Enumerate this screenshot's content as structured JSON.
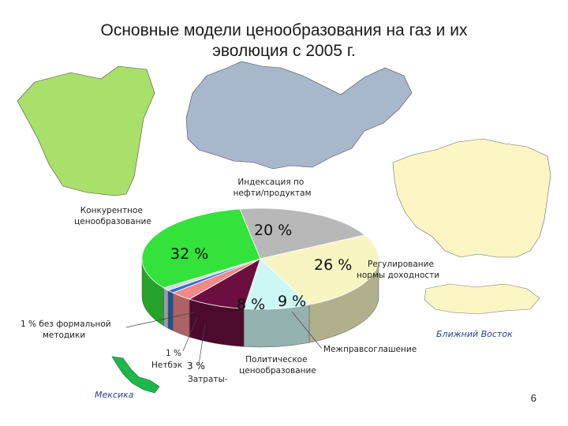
{
  "title_line1": "Основные модели ценообразования на газ и их",
  "title_line2": "эволюция с 2005 г.",
  "page_number": "6",
  "regions": {
    "middle_east": "Ближний Восток",
    "mexico": "Мексика"
  },
  "colors": {
    "north_america": "#a8e06a",
    "europe": "#a9b7cc",
    "russia": "#fbf6c4",
    "mexico": "#1db84a"
  },
  "chart_data": {
    "type": "pie",
    "title": "",
    "slices": [
      {
        "label": "Индексация по нефти/продуктам",
        "label_lines": [
          "Индексация по",
          "нефти/продуктам"
        ],
        "value": 20,
        "display": "20 %",
        "color": "#b8b8b8"
      },
      {
        "label": "Регулирование нормы доходности",
        "label_lines": [
          "Регулирование",
          "нормы доходности"
        ],
        "value": 26,
        "display": "26 %",
        "color": "#f7f5c2"
      },
      {
        "label": "Межправсоглашение",
        "label_lines": [
          "Межправсоглашение"
        ],
        "value": 9,
        "display": "9 %",
        "color": "#cdf7f5"
      },
      {
        "label": "Политическое ценообразование",
        "label_lines": [
          "Политическое",
          "ценообразование"
        ],
        "value": 8,
        "display": "8 %",
        "color": "#6a0f3f"
      },
      {
        "label": "Затраты-",
        "label_lines": [
          "Затраты-"
        ],
        "value": 3,
        "display": "3 %",
        "color": "#f08a8a"
      },
      {
        "label": "Нетбэк",
        "label_lines": [
          "Нетбэк"
        ],
        "value": 1,
        "display": "1 %",
        "color": "#2f6fd0"
      },
      {
        "label": "без формальной методики",
        "label_lines": [
          "без формальной",
          "методики"
        ],
        "value": 1,
        "display": "1 %",
        "color": "#d6d6e8"
      },
      {
        "label": "Конкурентное ценообразование",
        "label_lines": [
          "Конкурентное",
          "ценообразование"
        ],
        "value": 32,
        "display": "32 %",
        "color": "#33e23a"
      }
    ]
  }
}
